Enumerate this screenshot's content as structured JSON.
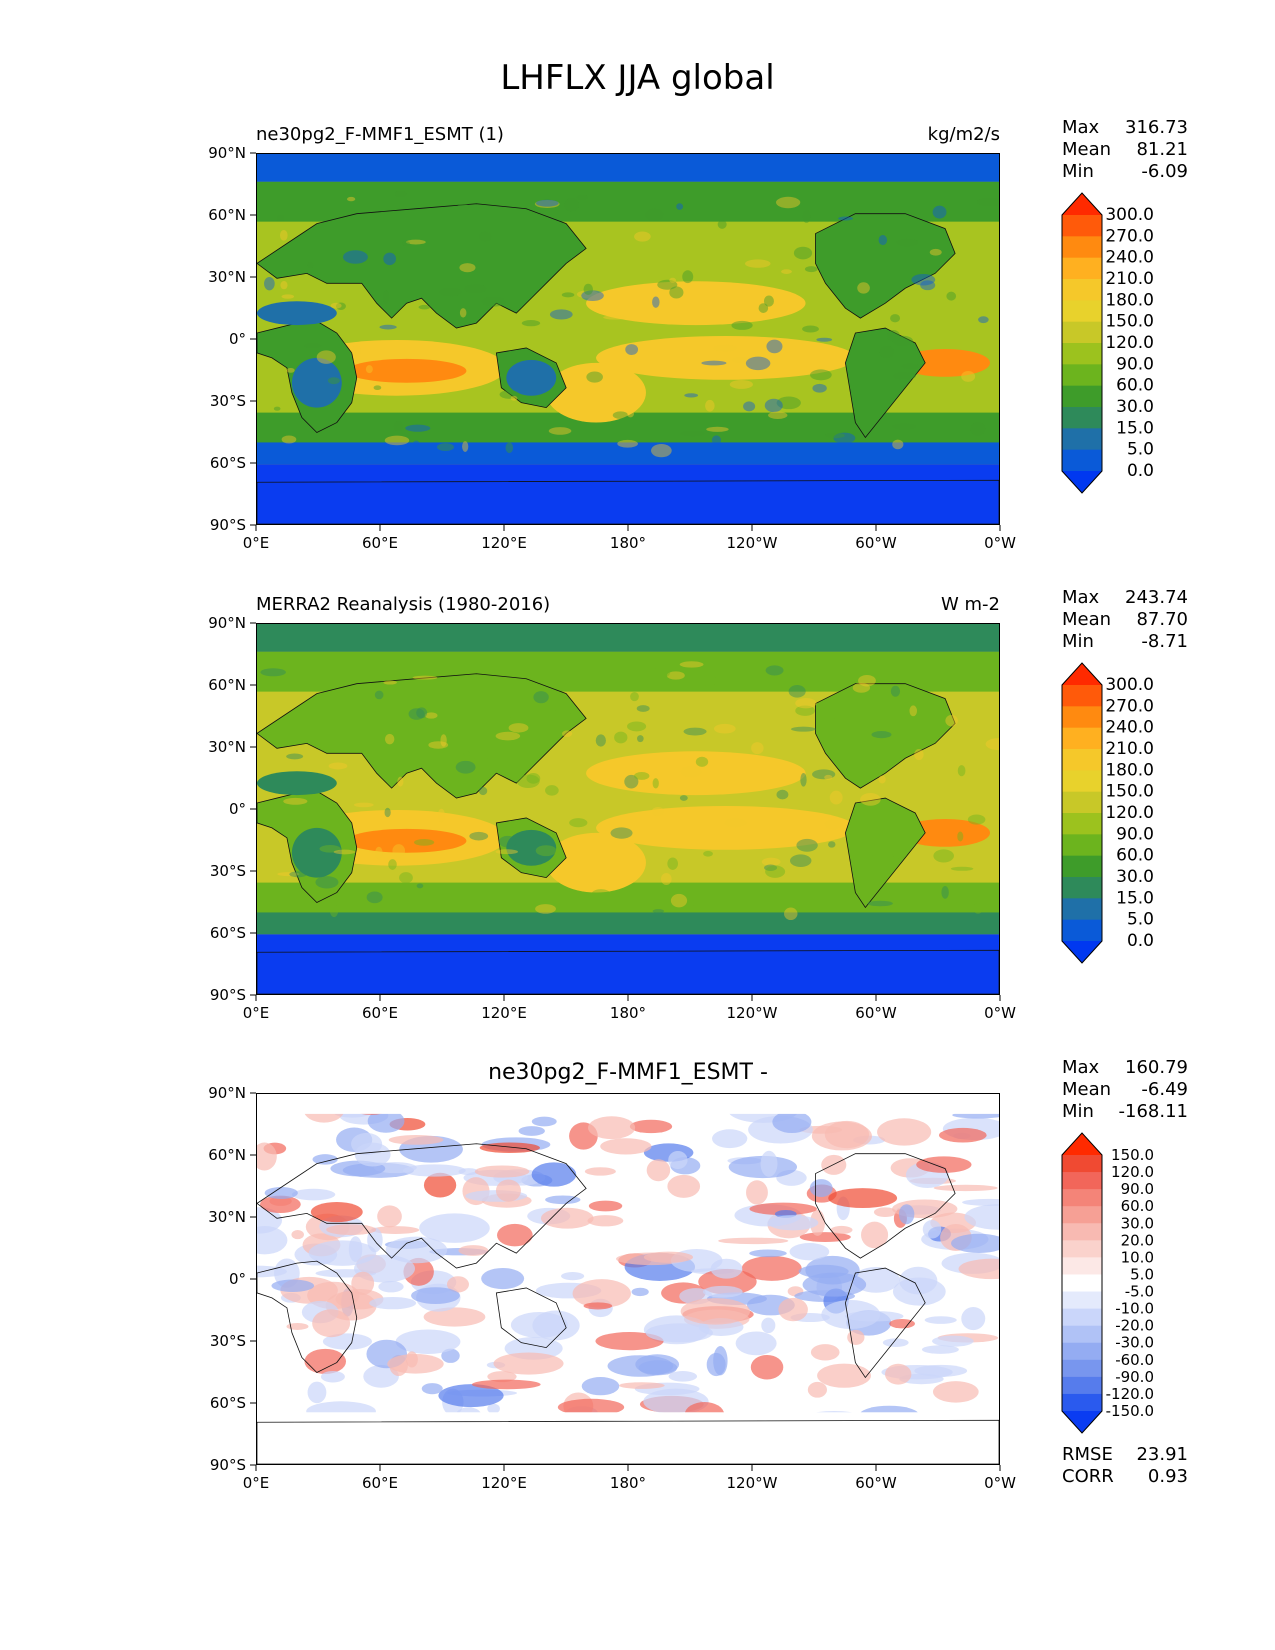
{
  "title": "LHFLX JJA global",
  "panels": [
    {
      "id": "test",
      "subtitle_left": "ne30pg2_F-MMF1_ESMT (1)",
      "subtitle_right": "kg/m2/s",
      "stats": [
        {
          "label": "Max",
          "value": "316.73"
        },
        {
          "label": "Mean",
          "value": "81.21"
        },
        {
          "label": "Min",
          "value": "-6.09"
        }
      ],
      "colorbar": {
        "levels": [
          "300.0",
          "270.0",
          "240.0",
          "210.0",
          "180.0",
          "150.0",
          "120.0",
          "90.0",
          "60.0",
          "30.0",
          "15.0",
          "5.0",
          "0.0"
        ],
        "colors": [
          "#ff2a00",
          "#ff5a0a",
          "#ff8a10",
          "#ffb020",
          "#f5c82a",
          "#e8d22c",
          "#c8c828",
          "#9cc21e",
          "#6cb41e",
          "#3e9c2a",
          "#2e8a5a",
          "#1f70a8",
          "#0a5ad8",
          "#0038f0"
        ]
      },
      "map_colors": {
        "ocean_base": "#a8c420",
        "polar": "#0a3cf0",
        "high_lat": "#0a5ad8",
        "mid": "#3e9c2a",
        "warm": "#f5c82a",
        "hot": "#ff8a10",
        "land_dry": "#1f70a8"
      }
    },
    {
      "id": "ref",
      "subtitle_left": "MERRA2 Reanalysis (1980-2016)",
      "subtitle_right": "W m-2",
      "stats": [
        {
          "label": "Max",
          "value": "243.74"
        },
        {
          "label": "Mean",
          "value": "87.70"
        },
        {
          "label": "Min",
          "value": "-8.71"
        }
      ],
      "colorbar": {
        "levels": [
          "300.0",
          "270.0",
          "240.0",
          "210.0",
          "180.0",
          "150.0",
          "120.0",
          "90.0",
          "60.0",
          "30.0",
          "15.0",
          "5.0",
          "0.0"
        ],
        "colors": [
          "#ff2a00",
          "#ff5a0a",
          "#ff8a10",
          "#ffb020",
          "#f5c82a",
          "#e8d22c",
          "#c8c828",
          "#9cc21e",
          "#6cb41e",
          "#3e9c2a",
          "#2e8a5a",
          "#1f70a8",
          "#0a5ad8",
          "#0038f0"
        ]
      },
      "map_colors": {
        "ocean_base": "#c8c828",
        "polar": "#0a3cf0",
        "high_lat": "#2e8a5a",
        "mid": "#6cb41e",
        "warm": "#f5c82a",
        "hot": "#ff8a10",
        "land_dry": "#2e8a5a"
      }
    },
    {
      "id": "diff",
      "center_title": "ne30pg2_F-MMF1_ESMT -",
      "stats": [
        {
          "label": "Max",
          "value": "160.79"
        },
        {
          "label": "Mean",
          "value": "-6.49"
        },
        {
          "label": "Min",
          "value": "-168.11"
        }
      ],
      "extra_stats": [
        {
          "label": "RMSE",
          "value": "23.91"
        },
        {
          "label": "CORR",
          "value": "0.93"
        }
      ],
      "colorbar": {
        "levels": [
          "150.0",
          "120.0",
          "90.0",
          "60.0",
          "30.0",
          "20.0",
          "10.0",
          "5.0",
          "-5.0",
          "-10.0",
          "-20.0",
          "-30.0",
          "-60.0",
          "-90.0",
          "-120.0",
          "-150.0"
        ],
        "colors": [
          "#ff2a00",
          "#f04a32",
          "#f2665a",
          "#f48478",
          "#f6a095",
          "#f8bab2",
          "#fad2cc",
          "#fce8e6",
          "#ffffff",
          "#e4eafc",
          "#cad6fa",
          "#b0c2f6",
          "#94acf2",
          "#7896ee",
          "#567cec",
          "#2a5aee",
          "#0a3cf2"
        ]
      },
      "map_colors": {
        "base": "#ffffff",
        "pos1": "#f8bab2",
        "pos2": "#f2665a",
        "pos3": "#f04a32",
        "neg1": "#cad6fa",
        "neg2": "#94acf2",
        "neg3": "#567cec"
      }
    }
  ],
  "axes": {
    "lat_ticks": [
      "90°N",
      "60°N",
      "30°N",
      "0°",
      "30°S",
      "60°S",
      "90°S"
    ],
    "lon_ticks": [
      "0°E",
      "60°E",
      "120°E",
      "180°",
      "120°W",
      "60°W",
      "0°W"
    ]
  }
}
